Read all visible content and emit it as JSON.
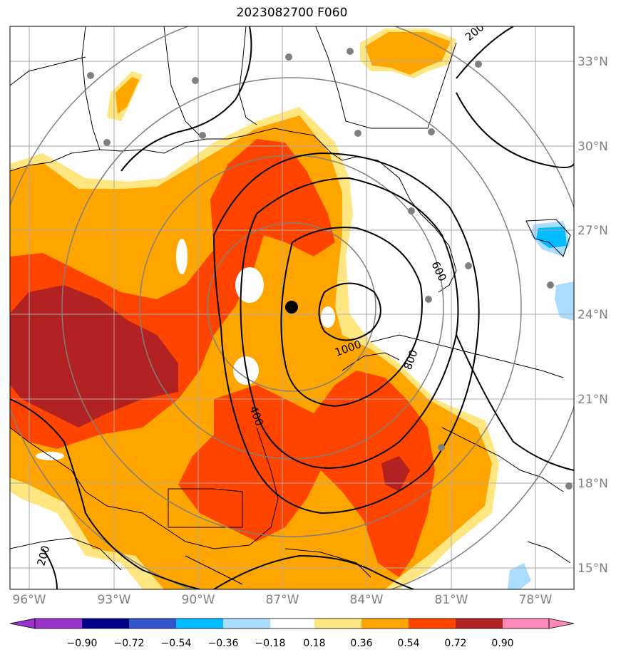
{
  "title": "2023082700 F060",
  "map": {
    "lon_ticks": [
      "96°W",
      "93°W",
      "90°W",
      "87°W",
      "84°W",
      "81°W",
      "78°W"
    ],
    "lat_ticks": [
      "33°N",
      "30°N",
      "27°N",
      "24°N",
      "21°N",
      "18°N",
      "15°N"
    ],
    "contour_labels": [
      "200",
      "400",
      "600",
      "800",
      "1000",
      "200"
    ],
    "storm_center": "black-dot",
    "station_marker_color": "#808080",
    "range_ring_color": "#808080"
  },
  "colorbar": {
    "colors": [
      "#9933cc",
      "#000088",
      "#3355cc",
      "#00bbff",
      "#aaddff",
      "#ffffff",
      "#ffe680",
      "#ffa500",
      "#ff4400",
      "#b22222",
      "#ff88bb"
    ],
    "labels": [
      "−0.90",
      "−0.72",
      "−0.54",
      "−0.36",
      "−0.18",
      "0.18",
      "0.36",
      "0.54",
      "0.72",
      "0.90"
    ]
  }
}
